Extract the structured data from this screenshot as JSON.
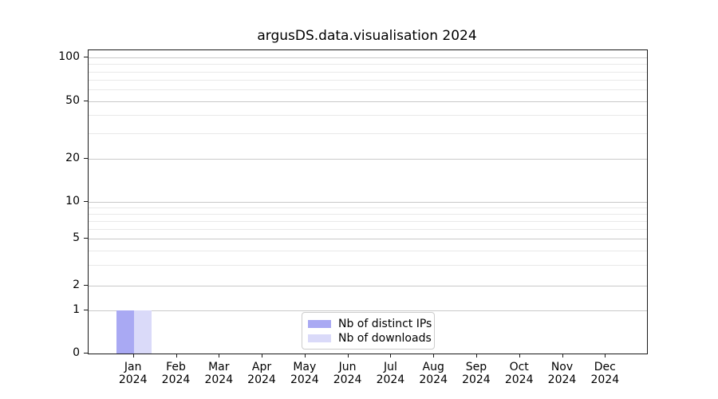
{
  "chart_data": {
    "type": "bar",
    "title": "argusDS.data.visualisation 2024",
    "categories": [
      {
        "line1": "Jan",
        "line2": "2024"
      },
      {
        "line1": "Feb",
        "line2": "2024"
      },
      {
        "line1": "Mar",
        "line2": "2024"
      },
      {
        "line1": "Apr",
        "line2": "2024"
      },
      {
        "line1": "May",
        "line2": "2024"
      },
      {
        "line1": "Jun",
        "line2": "2024"
      },
      {
        "line1": "Jul",
        "line2": "2024"
      },
      {
        "line1": "Aug",
        "line2": "2024"
      },
      {
        "line1": "Sep",
        "line2": "2024"
      },
      {
        "line1": "Oct",
        "line2": "2024"
      },
      {
        "line1": "Nov",
        "line2": "2024"
      },
      {
        "line1": "Dec",
        "line2": "2024"
      }
    ],
    "series": [
      {
        "name": "Nb of distinct IPs",
        "color": "#a9a9f3",
        "values": [
          1,
          0,
          0,
          0,
          0,
          0,
          0,
          0,
          0,
          0,
          0,
          0
        ]
      },
      {
        "name": "Nb of downloads",
        "color": "#dadaf9",
        "values": [
          1,
          0,
          0,
          0,
          0,
          0,
          0,
          0,
          0,
          0,
          0,
          0
        ]
      }
    ],
    "y_axis": {
      "scale": "symlog-like",
      "ticks": [
        0,
        1,
        2,
        5,
        10,
        20,
        50,
        100
      ],
      "minor_ticks": [
        3,
        4,
        6,
        7,
        8,
        9,
        30,
        40,
        60,
        70,
        80,
        90
      ],
      "tick_fractions_from_top": {
        "0": 1.0,
        "1": 0.859,
        "2": 0.776,
        "5": 0.622,
        "10": 0.5,
        "20": 0.358,
        "50": 0.167,
        "100": 0.0237
      }
    },
    "grid": {
      "major": true,
      "minor": true
    },
    "legend": {
      "position": "lower center"
    }
  }
}
